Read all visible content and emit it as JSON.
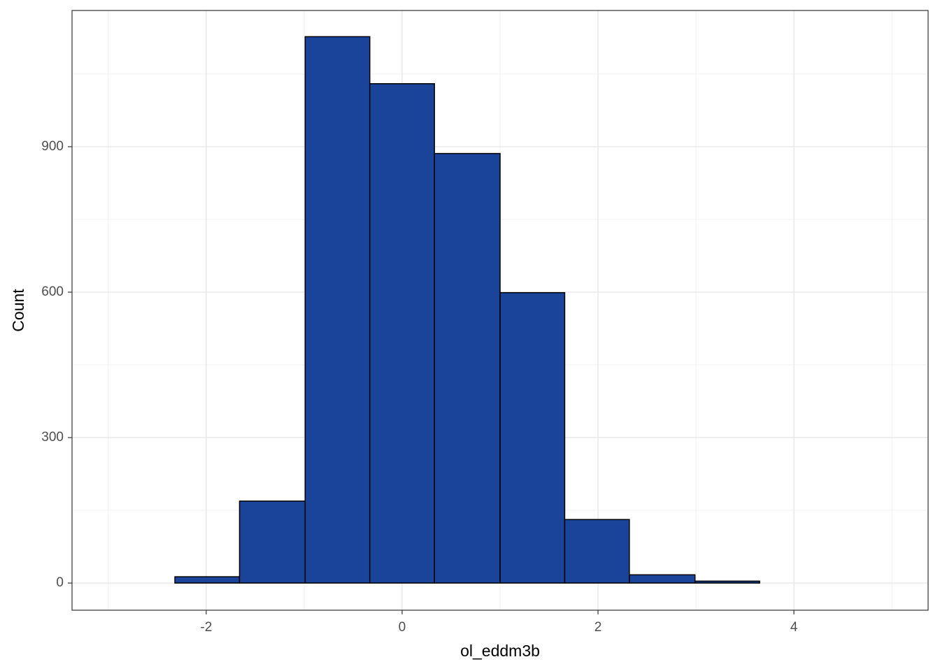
{
  "chart_data": {
    "type": "histogram",
    "x_label": "ol_eddm3b",
    "y_label": "Count",
    "bins": [
      -2.99,
      -2.32,
      -1.66,
      -0.99,
      -0.33,
      0.33,
      1.0,
      1.66,
      2.32,
      2.99,
      3.65,
      4.32,
      4.98
    ],
    "values": [
      0,
      13,
      169,
      1127,
      1030,
      886,
      599,
      131,
      17,
      4,
      0,
      0
    ],
    "color": "#1a4499",
    "edge_color": "#000000",
    "xlim": [
      -3.37,
      5.37
    ],
    "ylim": [
      -56,
      1181
    ],
    "xticks": [
      -2,
      0,
      2,
      4
    ],
    "yticks": [
      0,
      300,
      600,
      900
    ],
    "x_minor_ticks": [
      -3,
      -1,
      1,
      3,
      5
    ],
    "y_minor_ticks": [
      150,
      450,
      750,
      1050
    ],
    "grid": true
  }
}
